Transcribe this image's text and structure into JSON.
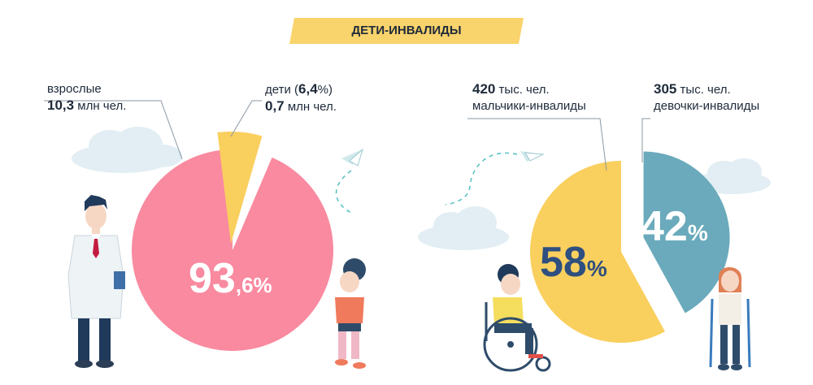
{
  "banner": {
    "title": "ДЕТИ-ИНВАЛИДЫ"
  },
  "left_labels": {
    "adults_word": "взрослые",
    "adults_value": "10,3",
    "adults_unit": "млн чел.",
    "children_word": "дети (",
    "children_pct": "6,4",
    "children_pct_sign": "%)",
    "children_value": "0,7",
    "children_unit": "млн чел.",
    "big_pct_int": "93",
    "big_pct_dec": ",6%"
  },
  "right_labels": {
    "boys_value": "420",
    "boys_unit": "тыс. чел.",
    "boys_word": "мальчики-инвалиды",
    "girls_value": "305",
    "girls_unit": "тыс. чел.",
    "girls_word": "девочки-инвалиды",
    "boys_pct_num": "58",
    "boys_pct_sign": "%",
    "girls_pct_num": "42",
    "girls_pct_sign": "%"
  },
  "colors": {
    "banner": "#f9d36b",
    "adults": "#f98aa0",
    "children": "#f9cf5e",
    "boys": "#f9cf5e",
    "girls": "#6aaabc",
    "cloud": "#e2eef3"
  },
  "chart_data": [
    {
      "type": "pie",
      "labels": [
        "взрослые",
        "дети"
      ],
      "values": [
        93.6,
        6.4
      ],
      "absolute": [
        "10,3 млн чел.",
        "0,7 млн чел."
      ]
    },
    {
      "type": "pie",
      "labels": [
        "мальчики-инвалиды",
        "девочки-инвалиды"
      ],
      "values": [
        58,
        42
      ],
      "absolute": [
        "420 тыс. чел.",
        "305 тыс. чел."
      ]
    }
  ]
}
